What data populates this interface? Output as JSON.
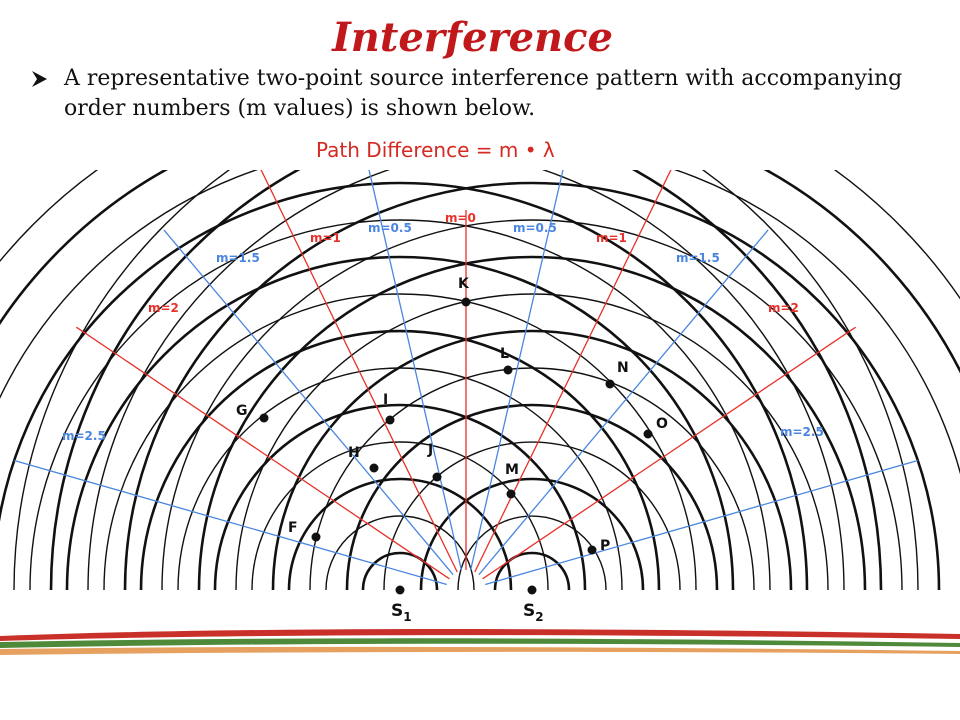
{
  "title": "Interference",
  "bullet": "A representative two-point source interference pattern with accompanying order numbers (m values) is shown below.",
  "formula": "Path Difference = m • λ",
  "colors": {
    "title": "#c0181b",
    "formula": "#d42a22",
    "antinodal_line": "#e8312a",
    "nodal_line": "#4a86e0",
    "wave": "#111111"
  },
  "diagram": {
    "order_labels": [
      "m=0",
      "m=0.5",
      "m=0.5",
      "m=1",
      "m=1",
      "m=1.5",
      "m=1.5",
      "m=2",
      "m=2",
      "m=2.5",
      "m=2.5"
    ],
    "points": [
      "K",
      "L",
      "M",
      "N",
      "O",
      "P",
      "G",
      "I",
      "H",
      "J",
      "F"
    ],
    "sources": [
      {
        "letter": "S",
        "sub": "1"
      },
      {
        "letter": "S",
        "sub": "2"
      }
    ]
  }
}
